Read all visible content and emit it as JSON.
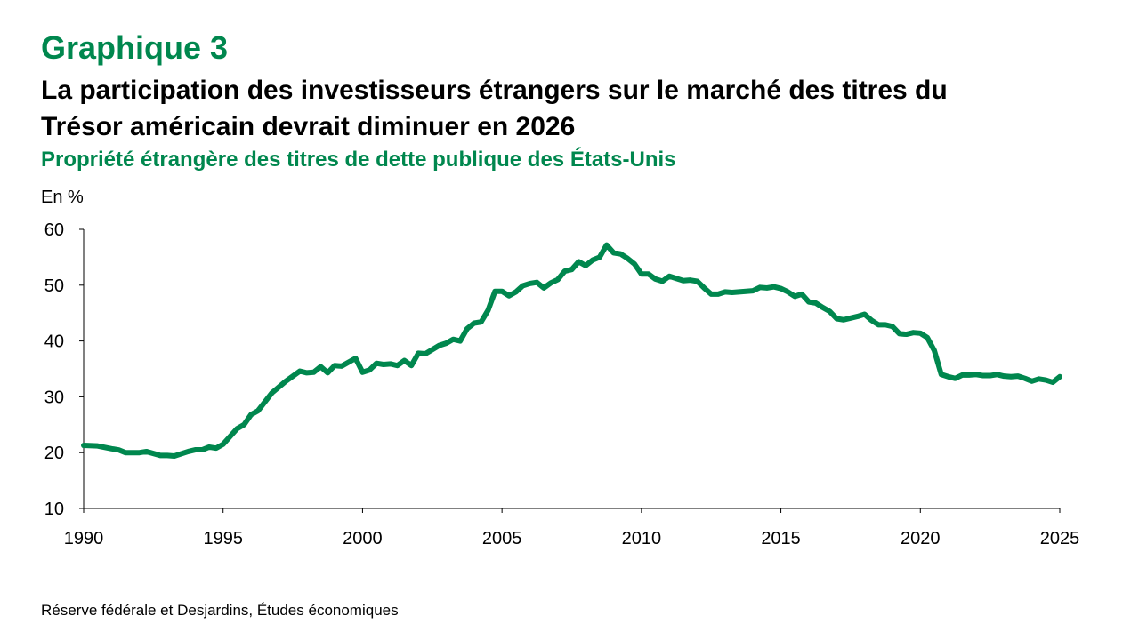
{
  "chart_data": {
    "type": "line",
    "label": "Graphique 3",
    "title": [
      "La participation des investisseurs étrangers sur le marché des titres du",
      "Trésor américain devrait diminuer en 2026"
    ],
    "subtitle": "Propriété étrangère des titres de dette publique des États-Unis",
    "y_label": "En %",
    "source": "Réserve fédérale et Desjardins, Études économiques",
    "color": "#00874e",
    "xlim": [
      1990,
      2025
    ],
    "xticks": [
      1990,
      1995,
      2000,
      2005,
      2010,
      2015,
      2020,
      2025
    ],
    "ylim": [
      10,
      60
    ],
    "yticks": [
      10,
      20,
      30,
      40,
      50,
      60
    ],
    "x": [
      1990,
      1990.5,
      1991,
      1991.25,
      1991.5,
      1992,
      1992.25,
      1992.75,
      1993,
      1993.25,
      1993.75,
      1994,
      1994.25,
      1994.5,
      1994.75,
      1995,
      1995.5,
      1995.75,
      1996,
      1996.25,
      1996.75,
      1997.25,
      1997.75,
      1998,
      1998.25,
      1998.5,
      1998.75,
      1999,
      1999.25,
      1999.75,
      2000,
      2000.25,
      2000.5,
      2000.75,
      2001,
      2001.25,
      2001.5,
      2001.75,
      2002,
      2002.25,
      2002.75,
      2003,
      2003.25,
      2003.5,
      2003.75,
      2004,
      2004.25,
      2004.5,
      2004.75,
      2005,
      2005.25,
      2005.5,
      2005.75,
      2006,
      2006.25,
      2006.5,
      2006.75,
      2007,
      2007.25,
      2007.5,
      2007.75,
      2008,
      2008.25,
      2008.5,
      2008.75,
      2009,
      2009.25,
      2009.5,
      2009.75,
      2010,
      2010.25,
      2010.5,
      2010.75,
      2011,
      2011.25,
      2011.5,
      2011.75,
      2012,
      2012.25,
      2012.5,
      2012.75,
      2013,
      2013.25,
      2013.5,
      2013.75,
      2014,
      2014.25,
      2014.5,
      2014.75,
      2015,
      2015.25,
      2015.5,
      2015.75,
      2016,
      2016.25,
      2016.5,
      2016.75,
      2017,
      2017.25,
      2017.5,
      2017.75,
      2018,
      2018.25,
      2018.5,
      2018.75,
      2019,
      2019.25,
      2019.5,
      2019.75,
      2020,
      2020.25,
      2020.5,
      2020.75,
      2021,
      2021.25,
      2021.5,
      2021.75,
      2022,
      2022.25,
      2022.5,
      2022.75,
      2023,
      2023.25,
      2023.5,
      2023.75,
      2024,
      2024.25,
      2024.5,
      2024.75,
      2025
    ],
    "values": [
      21.3,
      21.2,
      20.7,
      20.5,
      20.0,
      20.0,
      20.2,
      19.5,
      19.5,
      19.4,
      20.2,
      20.5,
      20.5,
      21.0,
      20.8,
      21.5,
      24.3,
      25.0,
      26.8,
      27.5,
      30.7,
      32.8,
      34.6,
      34.3,
      34.4,
      35.4,
      34.3,
      35.6,
      35.5,
      36.9,
      34.4,
      34.8,
      36.0,
      35.8,
      35.9,
      35.6,
      36.5,
      35.6,
      37.8,
      37.7,
      39.2,
      39.6,
      40.3,
      40.0,
      42.2,
      43.2,
      43.4,
      45.5,
      48.9,
      48.9,
      48.1,
      48.8,
      49.9,
      50.3,
      50.5,
      49.5,
      50.4,
      51.0,
      52.5,
      52.8,
      54.2,
      53.5,
      54.5,
      55.0,
      57.2,
      55.8,
      55.6,
      54.8,
      53.8,
      52.0,
      52.0,
      51.1,
      50.7,
      51.6,
      51.2,
      50.8,
      50.9,
      50.7,
      49.5,
      48.4,
      48.4,
      48.8,
      48.7,
      48.8,
      48.9,
      49.0,
      49.6,
      49.5,
      49.7,
      49.4,
      48.8,
      48.0,
      48.4,
      47.0,
      46.8,
      46.0,
      45.3,
      44.0,
      43.8,
      44.1,
      44.4,
      44.8,
      43.7,
      42.9,
      42.9,
      42.6,
      41.3,
      41.2,
      41.5,
      41.4,
      40.6,
      38.3,
      34.0,
      33.6,
      33.3,
      33.9,
      33.9,
      34.0,
      33.8,
      33.8,
      34.0,
      33.7,
      33.6,
      33.7,
      33.3,
      32.8,
      33.2,
      33.0,
      32.6,
      33.6
    ]
  }
}
